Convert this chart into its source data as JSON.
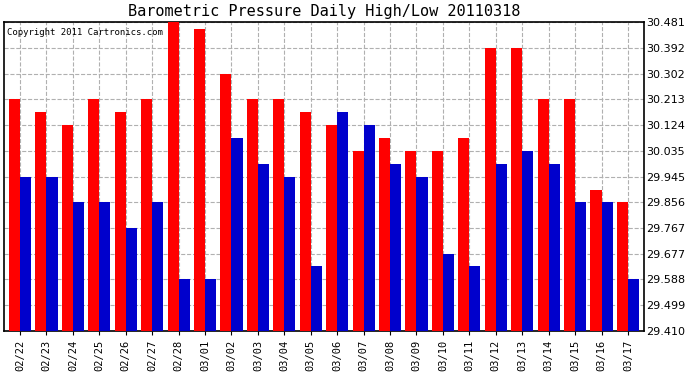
{
  "title": "Barometric Pressure Daily High/Low 20110318",
  "copyright": "Copyright 2011 Cartronics.com",
  "dates": [
    "02/22",
    "02/23",
    "02/24",
    "02/25",
    "02/26",
    "02/27",
    "02/28",
    "03/01",
    "03/02",
    "03/03",
    "03/04",
    "03/05",
    "03/06",
    "03/07",
    "03/08",
    "03/09",
    "03/10",
    "03/11",
    "03/12",
    "03/13",
    "03/14",
    "03/15",
    "03/16",
    "03/17"
  ],
  "highs": [
    30.213,
    30.168,
    30.124,
    30.213,
    30.168,
    30.213,
    30.481,
    30.457,
    30.302,
    30.213,
    30.213,
    30.168,
    30.124,
    30.035,
    30.079,
    30.035,
    30.035,
    30.079,
    30.392,
    30.392,
    30.213,
    30.213,
    29.9,
    29.856
  ],
  "lows": [
    29.945,
    29.945,
    29.856,
    29.856,
    29.767,
    29.856,
    29.588,
    29.588,
    30.079,
    29.99,
    29.945,
    29.634,
    30.168,
    30.124,
    29.99,
    29.945,
    29.677,
    29.634,
    29.99,
    30.035,
    29.99,
    29.856,
    29.856,
    29.588
  ],
  "high_color": "#ff0000",
  "low_color": "#0000cc",
  "background_color": "#ffffff",
  "grid_color": "#b0b0b0",
  "ymin": 29.41,
  "ymax": 30.481,
  "yticks": [
    29.41,
    29.499,
    29.588,
    29.677,
    29.767,
    29.856,
    29.945,
    30.035,
    30.124,
    30.213,
    30.302,
    30.392,
    30.481
  ]
}
